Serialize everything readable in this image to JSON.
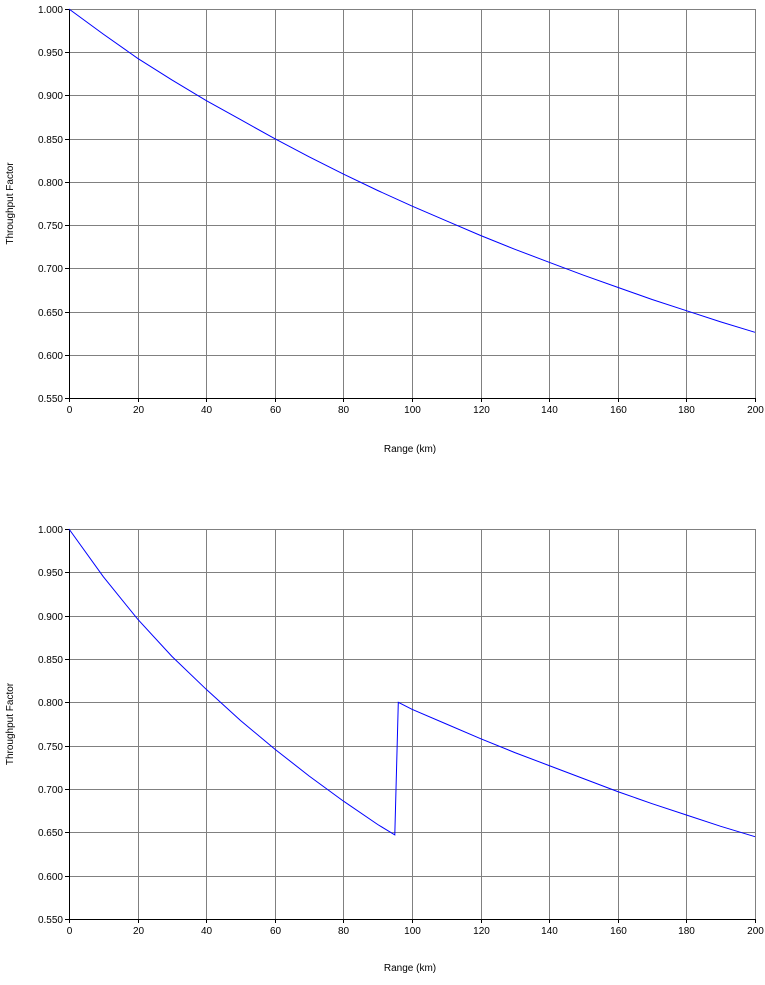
{
  "chart_data": [
    {
      "type": "line",
      "xlabel": "Range (km)",
      "ylabel": "Throughput Factor",
      "xlim": [
        0,
        200
      ],
      "ylim": [
        0.55,
        1.0
      ],
      "x_ticks": [
        "0",
        "20",
        "40",
        "60",
        "80",
        "100",
        "120",
        "140",
        "160",
        "180",
        "200"
      ],
      "y_ticks": [
        "0.550",
        "0.600",
        "0.650",
        "0.700",
        "0.750",
        "0.800",
        "0.850",
        "0.900",
        "0.950",
        "1.000"
      ],
      "grid": true,
      "line_color": "#0000ff",
      "series": [
        {
          "x": [
            0,
            10,
            20,
            30,
            40,
            50,
            60,
            70,
            80,
            90,
            100,
            110,
            120,
            130,
            140,
            150,
            160,
            170,
            180,
            190,
            200
          ],
          "y": [
            1.0,
            0.971,
            0.943,
            0.918,
            0.894,
            0.872,
            0.85,
            0.829,
            0.809,
            0.79,
            0.772,
            0.755,
            0.738,
            0.722,
            0.707,
            0.692,
            0.678,
            0.664,
            0.651,
            0.638,
            0.626
          ]
        }
      ]
    },
    {
      "type": "line",
      "xlabel": "Range (km)",
      "ylabel": "Throughput Factor",
      "xlim": [
        0,
        200
      ],
      "ylim": [
        0.55,
        1.0
      ],
      "x_ticks": [
        "0",
        "20",
        "40",
        "60",
        "80",
        "100",
        "120",
        "140",
        "160",
        "180",
        "200"
      ],
      "y_ticks": [
        "0.550",
        "0.600",
        "0.650",
        "0.700",
        "0.750",
        "0.800",
        "0.850",
        "0.900",
        "0.950",
        "1.000"
      ],
      "grid": true,
      "line_color": "#0000ff",
      "series": [
        {
          "x": [
            0,
            10,
            20,
            30,
            40,
            50,
            60,
            70,
            80,
            90,
            95,
            96,
            100,
            110,
            120,
            130,
            140,
            150,
            160,
            170,
            180,
            190,
            200
          ],
          "y": [
            1.0,
            0.945,
            0.896,
            0.853,
            0.815,
            0.779,
            0.746,
            0.715,
            0.686,
            0.659,
            0.647,
            0.8,
            0.792,
            0.775,
            0.758,
            0.742,
            0.727,
            0.712,
            0.697,
            0.683,
            0.67,
            0.657,
            0.645
          ]
        }
      ]
    }
  ]
}
